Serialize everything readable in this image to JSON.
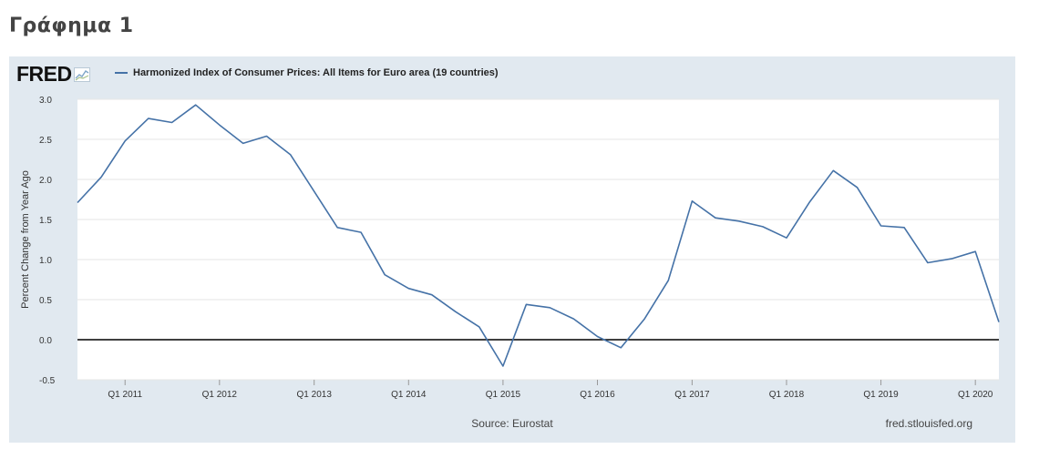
{
  "page": {
    "heading": "Γράφημα 1"
  },
  "logo": {
    "text": "FRED"
  },
  "footer": {
    "source": "Source: Eurostat",
    "site": "fred.stlouisfed.org"
  },
  "colors": {
    "series": "#4572a7",
    "background": "#e1e9f0",
    "zero_line": "#000000",
    "grid": "#e6e6e6"
  },
  "chart_data": {
    "type": "line",
    "title": "",
    "ylabel": "Percent Change from Year Ago",
    "xlabel": "",
    "ylim": [
      -0.5,
      3.0
    ],
    "yticks": [
      -0.5,
      0.0,
      0.5,
      1.0,
      1.5,
      2.0,
      2.5,
      3.0
    ],
    "ytick_labels": [
      "-0.5",
      "0.0",
      "0.5",
      "1.0",
      "1.5",
      "2.0",
      "2.5",
      "3.0"
    ],
    "xlim": [
      "2010-07-01",
      "2020-04-01"
    ],
    "xtick_labels": [
      "Q1 2011",
      "Q1 2012",
      "Q1 2013",
      "Q1 2014",
      "Q1 2015",
      "Q1 2016",
      "Q1 2017",
      "Q1 2018",
      "Q1 2019",
      "Q1 2020"
    ],
    "xtick_dates": [
      "2011-01-01",
      "2012-01-01",
      "2013-01-01",
      "2014-01-01",
      "2015-01-01",
      "2016-01-01",
      "2017-01-01",
      "2018-01-01",
      "2019-01-01",
      "2020-01-01"
    ],
    "grid": true,
    "zero_line": true,
    "series": [
      {
        "name": "Harmonized Index of Consumer Prices: All Items for Euro area (19 countries)",
        "x": [
          "2010-07-01",
          "2010-10-01",
          "2011-01-01",
          "2011-04-01",
          "2011-07-01",
          "2011-10-01",
          "2012-01-01",
          "2012-04-01",
          "2012-07-01",
          "2012-10-01",
          "2013-01-01",
          "2013-04-01",
          "2013-07-01",
          "2013-10-01",
          "2014-01-01",
          "2014-04-01",
          "2014-07-01",
          "2014-10-01",
          "2015-01-01",
          "2015-04-01",
          "2015-07-01",
          "2015-10-01",
          "2016-01-01",
          "2016-04-01",
          "2016-07-01",
          "2016-10-01",
          "2017-01-01",
          "2017-04-01",
          "2017-07-01",
          "2017-10-01",
          "2018-01-01",
          "2018-04-01",
          "2018-07-01",
          "2018-10-01",
          "2019-01-01",
          "2019-04-01",
          "2019-07-01",
          "2019-10-01",
          "2020-01-01",
          "2020-04-01"
        ],
        "values": [
          1.71,
          2.03,
          2.48,
          2.76,
          2.71,
          2.93,
          2.68,
          2.45,
          2.54,
          2.31,
          1.85,
          1.4,
          1.34,
          0.81,
          0.64,
          0.56,
          0.35,
          0.16,
          -0.33,
          0.44,
          0.4,
          0.26,
          0.04,
          -0.1,
          0.26,
          0.74,
          1.73,
          1.52,
          1.48,
          1.41,
          1.27,
          1.72,
          2.11,
          1.9,
          1.42,
          1.4,
          0.96,
          1.01,
          1.1,
          0.22
        ]
      }
    ]
  }
}
